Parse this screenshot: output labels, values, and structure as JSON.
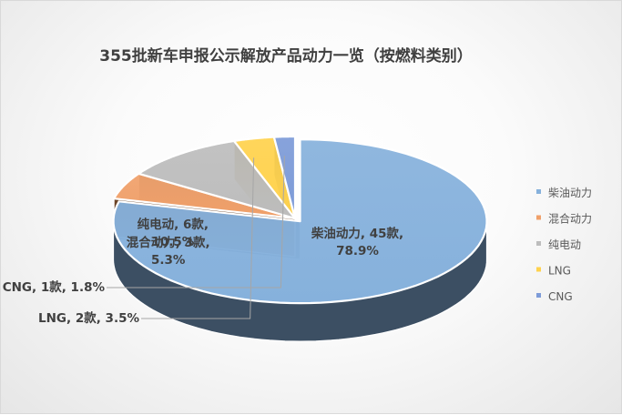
{
  "chart_data": {
    "type": "pie",
    "title": "355批新车申报公示解放产品动力一览（按燃料类别）",
    "legend_position": "right",
    "slices": [
      {
        "name": "柴油动力",
        "count": 45,
        "count_label": "45款",
        "percent": 78.9,
        "percent_label": "78.9%",
        "color": "#86b1dc",
        "side_color": "#3c4f63"
      },
      {
        "name": "混合动力",
        "count": 3,
        "count_label": "3款",
        "percent": 5.3,
        "percent_label": "5.3%",
        "color": "#f0a06a",
        "side_color": "#6b4427"
      },
      {
        "name": "纯电动",
        "count": 6,
        "count_label": "6款",
        "percent": 10.5,
        "percent_label": "10.5%",
        "color": "#bdbdbd",
        "side_color": "#7c7c7c"
      },
      {
        "name": "LNG",
        "count": 2,
        "count_label": "2款",
        "percent": 3.5,
        "percent_label": "3.5%",
        "color": "#ffd24d",
        "side_color": "#9e7e1c"
      },
      {
        "name": "CNG",
        "count": 1,
        "count_label": "1款",
        "percent": 1.8,
        "percent_label": "1.8%",
        "color": "#7d9bd8",
        "side_color": "#3e5380"
      }
    ]
  }
}
